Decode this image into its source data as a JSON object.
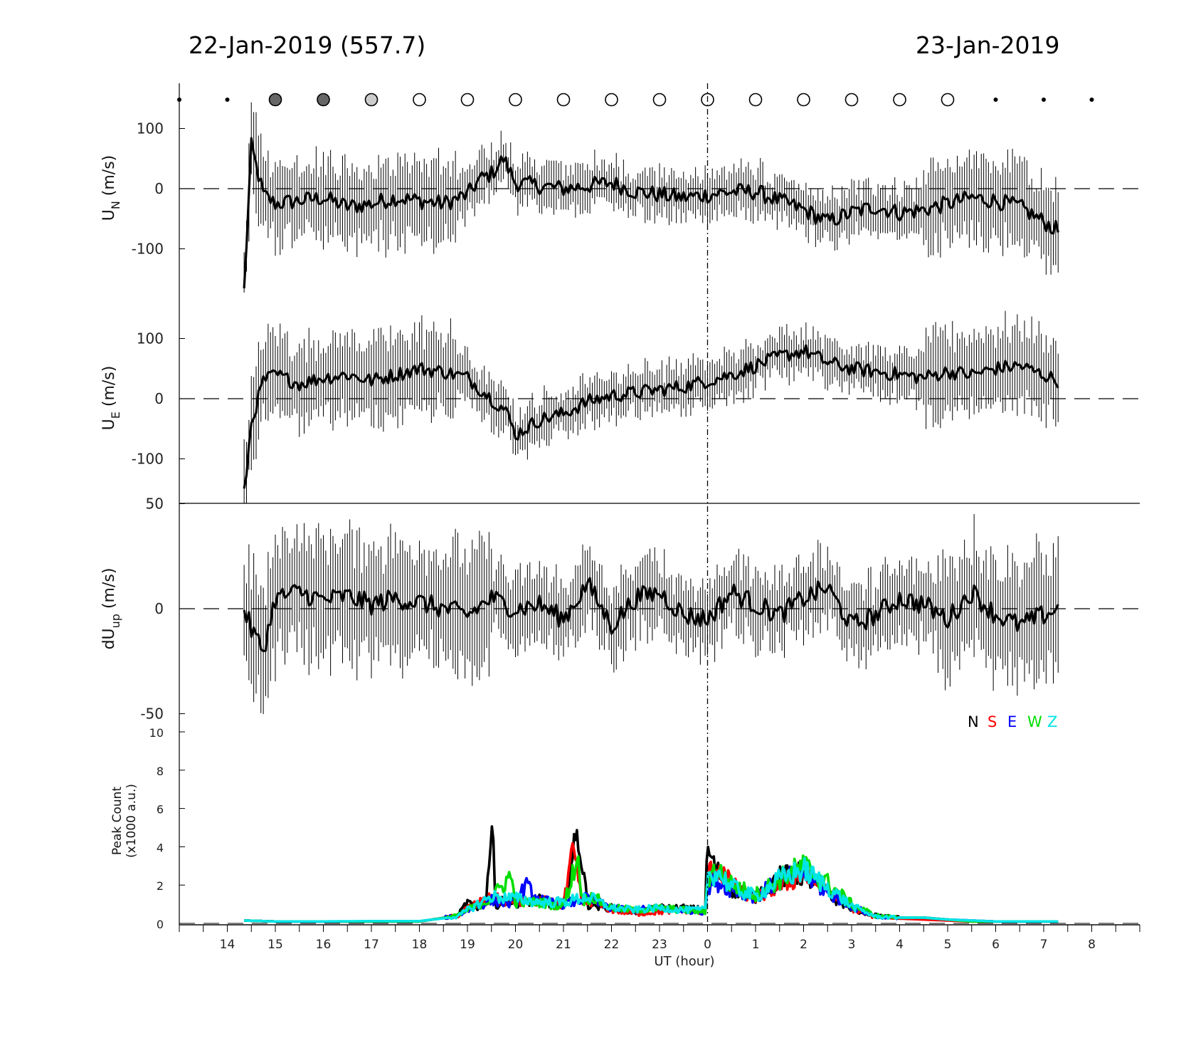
{
  "header": {
    "left_date": "22-Jan-2019 (557.7)",
    "right_date": "23-Jan-2019"
  },
  "chart_data": {
    "type": "line",
    "x_axis": {
      "label": "UT (hour)",
      "tick_labels": [
        "14",
        "15",
        "16",
        "17",
        "18",
        "19",
        "20",
        "21",
        "22",
        "23",
        "0",
        "1",
        "2",
        "3",
        "4",
        "5",
        "6",
        "7",
        "8"
      ],
      "midnight_marker": "0"
    },
    "cloud_indicator": {
      "hours": [
        13,
        14,
        15,
        16,
        17,
        18,
        19,
        20,
        21,
        22,
        23,
        24,
        25,
        26,
        27,
        28,
        29,
        30,
        31,
        32
      ],
      "states": [
        "dot",
        "dot",
        "dark",
        "dark",
        "light",
        "open",
        "open",
        "open",
        "open",
        "open",
        "open",
        "open",
        "open",
        "open",
        "open",
        "open",
        "open",
        "dot",
        "dot",
        "dot"
      ]
    },
    "panels": [
      {
        "name": "U_N",
        "ylabel": "U",
        "ylabel_sub": "N",
        "ylabel_unit": "(m/s)",
        "ylim": [
          -175,
          175
        ],
        "ticks": [
          "100",
          "0",
          "-100"
        ],
        "tick_values": [
          100,
          0,
          -100
        ],
        "series": [
          {
            "name": "U_N",
            "color": "#000000",
            "x": [
              14.35,
              14.5,
              14.75,
              15,
              15.5,
              16,
              16.5,
              17,
              17.5,
              18,
              18.5,
              19,
              19.25,
              19.5,
              19.75,
              20,
              20.5,
              21,
              21.5,
              22,
              22.5,
              23,
              23.5,
              24,
              24.5,
              25,
              25.5,
              26,
              26.5,
              27,
              27.5,
              28,
              28.5,
              29,
              29.5,
              30,
              30.5,
              31.3
            ],
            "y": [
              -170,
              70,
              -10,
              -25,
              -20,
              -15,
              -30,
              -25,
              -15,
              -20,
              -25,
              -10,
              15,
              25,
              50,
              10,
              5,
              0,
              5,
              10,
              -5,
              -10,
              -15,
              -10,
              -5,
              -5,
              -20,
              -35,
              -55,
              -40,
              -30,
              -40,
              -35,
              -25,
              -15,
              -20,
              -30,
              -70
            ]
          }
        ]
      },
      {
        "name": "U_E",
        "ylabel": "U",
        "ylabel_sub": "E",
        "ylabel_unit": "(m/s)",
        "ylim": [
          -175,
          175
        ],
        "ticks": [
          "100",
          "0",
          "-100"
        ],
        "tick_values": [
          100,
          0,
          -100
        ],
        "series": [
          {
            "name": "U_E",
            "color": "#000000",
            "x": [
              14.35,
              14.5,
              14.75,
              15,
              15.5,
              16,
              16.5,
              17,
              17.5,
              18,
              18.5,
              19,
              19.5,
              19.8,
              20,
              20.5,
              21,
              21.5,
              22,
              22.5,
              23,
              23.5,
              24,
              24.5,
              25,
              25.5,
              26,
              26.5,
              27,
              27.5,
              28,
              28.5,
              29,
              29.5,
              30,
              30.5,
              31.3
            ],
            "y": [
              -160,
              -40,
              30,
              40,
              25,
              35,
              40,
              30,
              40,
              50,
              45,
              35,
              0,
              -20,
              -60,
              -35,
              -25,
              -5,
              5,
              10,
              15,
              20,
              30,
              40,
              55,
              70,
              80,
              60,
              50,
              45,
              40,
              35,
              45,
              40,
              50,
              55,
              30
            ]
          }
        ]
      },
      {
        "name": "dU_up",
        "ylabel": "dU",
        "ylabel_sub": "up",
        "ylabel_unit": "(m/s)",
        "ylim": [
          -50,
          50
        ],
        "ticks": [
          "50",
          "0",
          "-50"
        ],
        "tick_values": [
          50,
          0,
          -50
        ],
        "series": [
          {
            "name": "dU_up",
            "color": "#000000",
            "x": [
              14.35,
              14.5,
              14.75,
              15,
              15.5,
              16,
              16.5,
              17,
              17.5,
              18,
              18.5,
              19,
              19.5,
              20,
              20.5,
              21,
              21.5,
              22,
              22.5,
              23,
              23.5,
              24,
              24.5,
              25,
              25.5,
              26,
              26.5,
              27,
              27.5,
              28,
              28.5,
              29,
              29.5,
              30,
              30.5,
              31.3
            ],
            "y": [
              0,
              -10,
              -20,
              5,
              8,
              4,
              6,
              2,
              5,
              3,
              0,
              -3,
              5,
              0,
              2,
              -5,
              12,
              -8,
              5,
              8,
              -3,
              -5,
              8,
              2,
              -3,
              5,
              10,
              -8,
              -3,
              5,
              2,
              -5,
              8,
              -3,
              -8,
              0
            ]
          }
        ]
      },
      {
        "name": "Peak Count",
        "ylabel": "Peak Count",
        "ylabel_line2": "(x1000 a.u.)",
        "ylim": [
          0,
          10.5
        ],
        "ticks": [
          "10",
          "8",
          "6",
          "4",
          "2",
          "0"
        ],
        "tick_values": [
          10,
          8,
          6,
          4,
          2,
          0
        ],
        "legend": {
          "placement": "top-right",
          "entries": [
            {
              "name": "N",
              "color": "#000000"
            },
            {
              "name": "S",
              "color": "#ff0000"
            },
            {
              "name": "E",
              "color": "#0000ff"
            },
            {
              "name": "W",
              "color": "#00dd00"
            },
            {
              "name": "Z",
              "color": "#00e5e5"
            }
          ]
        },
        "series": [
          {
            "name": "N",
            "color": "#000000",
            "x": [
              14.35,
              15,
              16,
              17,
              18,
              18.8,
              19,
              19.2,
              19.4,
              19.5,
              19.6,
              19.8,
              20,
              20.5,
              21,
              21.3,
              21.5,
              22,
              22.5,
              23,
              23.5,
              23.95,
              24,
              24.1,
              24.3,
              24.5,
              25,
              25.5,
              26,
              26.5,
              27,
              27.5,
              28,
              28.5,
              29,
              29.5,
              30,
              31.3
            ],
            "y": [
              0.15,
              0.1,
              0.1,
              0.1,
              0.1,
              0.4,
              1.1,
              0.7,
              1.2,
              5.9,
              0.8,
              1.3,
              1.1,
              1.2,
              0.9,
              4.8,
              1.0,
              0.8,
              0.6,
              0.8,
              0.8,
              0.7,
              4.0,
              3.2,
              2.3,
              1.8,
              1.4,
              2.4,
              2.6,
              1.5,
              0.8,
              0.4,
              0.3,
              0.3,
              0.2,
              0.1,
              0.1,
              0.1
            ]
          },
          {
            "name": "S",
            "color": "#ff0000",
            "x": [
              14.35,
              15,
              16,
              17,
              18,
              18.8,
              19,
              19.5,
              20,
              20.5,
              21,
              21.2,
              21.4,
              21.6,
              22,
              22.5,
              23,
              23.5,
              23.95,
              24,
              24.2,
              24.5,
              25,
              25.5,
              26,
              26.5,
              27,
              27.5,
              28,
              28.5,
              29,
              29.5,
              30,
              31.3
            ],
            "y": [
              0.15,
              0.1,
              0.1,
              0.1,
              0.1,
              0.4,
              0.8,
              1.3,
              1.1,
              1.2,
              0.9,
              3.7,
              1.0,
              1.2,
              0.7,
              0.5,
              0.6,
              0.7,
              0.6,
              2.5,
              3.0,
              2.0,
              1.3,
              2.0,
              2.5,
              1.8,
              0.8,
              0.3,
              0.25,
              0.2,
              0.15,
              0.1,
              0.1,
              0.1
            ]
          },
          {
            "name": "E",
            "color": "#0000ff",
            "x": [
              14.35,
              15,
              16,
              17,
              18,
              18.8,
              19,
              19.5,
              20,
              20.2,
              20.5,
              21,
              21.5,
              22,
              22.5,
              23,
              23.5,
              23.95,
              24,
              24.2,
              24.5,
              25,
              25.5,
              26,
              26.5,
              27,
              27.5,
              28,
              28.5,
              29,
              29.5,
              30,
              31.3
            ],
            "y": [
              0.15,
              0.1,
              0.1,
              0.1,
              0.1,
              0.4,
              0.7,
              1.2,
              1.0,
              2.0,
              1.2,
              1.0,
              1.3,
              0.8,
              0.7,
              0.8,
              0.7,
              0.6,
              2.0,
              2.2,
              1.8,
              1.4,
              2.2,
              2.6,
              1.6,
              0.9,
              0.35,
              0.3,
              0.3,
              0.2,
              0.15,
              0.1,
              0.1
            ]
          },
          {
            "name": "W",
            "color": "#00dd00",
            "x": [
              14.35,
              15,
              16,
              17,
              18,
              18.8,
              19,
              19.5,
              19.9,
              20,
              20.5,
              21,
              21.3,
              21.4,
              21.6,
              22,
              22.5,
              23,
              23.5,
              23.95,
              24,
              24.2,
              24.5,
              25,
              25.5,
              26,
              26.5,
              27,
              27.5,
              28,
              28.5,
              29,
              29.5,
              30,
              31.3
            ],
            "y": [
              0.15,
              0.1,
              0.1,
              0.1,
              0.1,
              0.4,
              0.7,
              1.3,
              2.5,
              1.1,
              1.1,
              0.9,
              3.5,
              1.2,
              1.4,
              0.8,
              0.7,
              0.8,
              0.7,
              0.6,
              2.4,
              2.8,
              2.0,
              1.5,
              2.3,
              3.0,
              2.1,
              1.0,
              0.4,
              0.3,
              0.3,
              0.2,
              0.1,
              0.1,
              0.1
            ]
          },
          {
            "name": "Z",
            "color": "#00e5e5",
            "x": [
              14.35,
              15,
              16,
              17,
              18,
              18.8,
              19,
              19.5,
              20,
              20.5,
              21,
              21.5,
              22,
              22.5,
              23,
              23.5,
              23.95,
              24,
              24.2,
              24.5,
              25,
              25.5,
              26,
              26.5,
              27,
              27.5,
              28,
              28.5,
              29,
              29.5,
              30,
              31.3
            ],
            "y": [
              0.15,
              0.1,
              0.1,
              0.12,
              0.12,
              0.35,
              0.7,
              1.4,
              1.3,
              1.1,
              1.1,
              1.4,
              0.8,
              0.7,
              0.8,
              0.7,
              0.7,
              2.5,
              2.7,
              1.9,
              1.4,
              2.3,
              2.8,
              1.9,
              0.9,
              0.35,
              0.3,
              0.3,
              0.2,
              0.15,
              0.1,
              0.1
            ]
          }
        ]
      }
    ]
  }
}
